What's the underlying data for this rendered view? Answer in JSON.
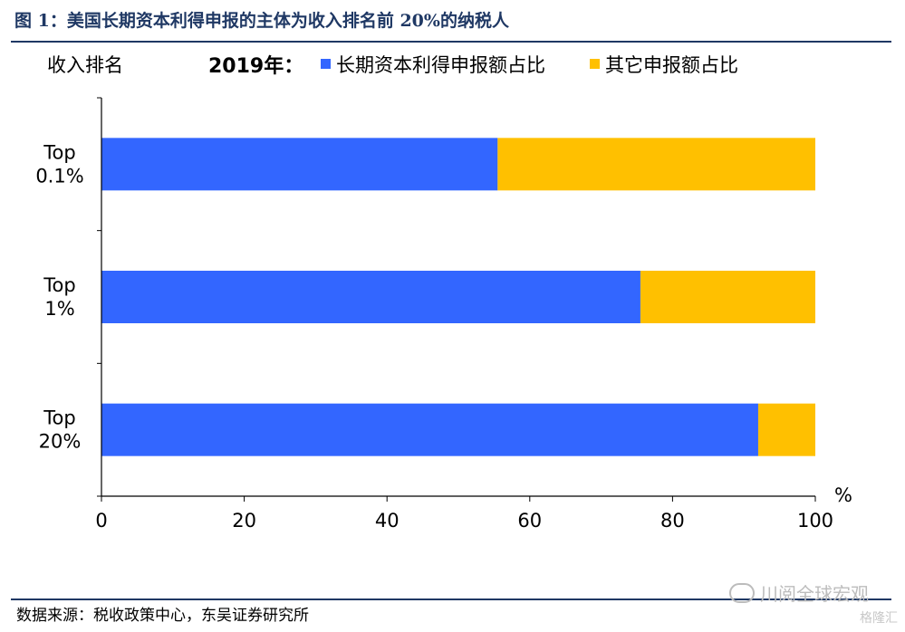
{
  "title": "图 1：美国长期资本利得申报的主体为收入排名前 20%的纳税人",
  "source": "数据来源：税收政策中心，东吴证券研究所",
  "watermark": "川阅全球宏观",
  "watermark2": "格隆汇",
  "colors": {
    "title": "#1f3864",
    "series1": "#3366ff",
    "series2": "#ffc000"
  },
  "chart_data": {
    "type": "bar",
    "orientation": "horizontal",
    "stacked": true,
    "category_axis_header": "收入排名",
    "year_label": "2019年：",
    "categories": [
      [
        "Top",
        "0.1%"
      ],
      [
        "Top",
        "1%"
      ],
      [
        "Top",
        "20%"
      ]
    ],
    "series": [
      {
        "name": "长期资本利得申报额占比",
        "values": [
          55.5,
          75.5,
          92
        ]
      },
      {
        "name": "其它申报额占比",
        "values": [
          44.5,
          24.5,
          8
        ]
      }
    ],
    "xlim": [
      0,
      100
    ],
    "xticks": [
      "0",
      "20",
      "40",
      "60",
      "80",
      "100"
    ],
    "xunit": "%",
    "legend_position": "top",
    "grid": false
  }
}
